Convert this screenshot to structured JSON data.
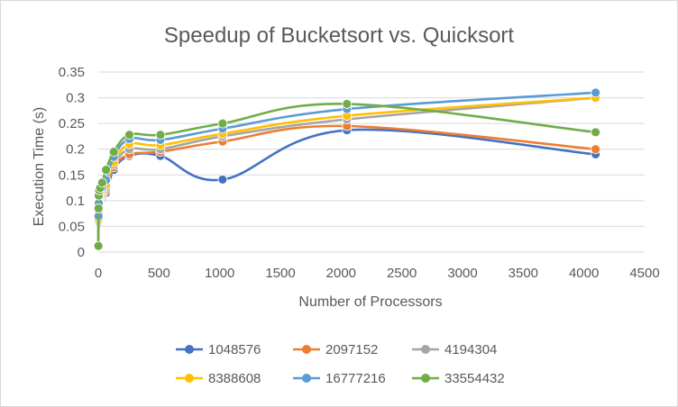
{
  "chart_data": {
    "type": "scatter",
    "title": "Speedup of Bucketsort vs. Quicksort",
    "xlabel": "Number of Processors",
    "ylabel": "Execution Time (s)",
    "xlim": [
      0,
      4500
    ],
    "ylim": [
      0,
      0.35
    ],
    "x_ticks": [
      0,
      500,
      1000,
      1500,
      2000,
      2500,
      3000,
      3500,
      4000,
      4500
    ],
    "y_ticks": [
      0,
      0.05,
      0.1,
      0.15,
      0.2,
      0.25,
      0.3,
      0.35
    ],
    "x_tick_labels": [
      "0",
      "500",
      "1000",
      "1500",
      "2000",
      "2500",
      "3000",
      "3500",
      "4000",
      "4500"
    ],
    "y_tick_labels": [
      "0",
      "0.05",
      "0.1",
      "0.15",
      "0.2",
      "0.25",
      "0.3",
      "0.35"
    ],
    "grid": true,
    "legend_position": "bottom",
    "smoothed_lines": true,
    "series": [
      {
        "name": "1048576",
        "color": "#4472C4",
        "points": [
          [
            1,
            0.012
          ],
          [
            2,
            0.058
          ],
          [
            4,
            0.075
          ],
          [
            8,
            0.09
          ],
          [
            16,
            0.098
          ],
          [
            32,
            0.104
          ],
          [
            64,
            0.115
          ],
          [
            128,
            0.16
          ],
          [
            256,
            0.187
          ],
          [
            512,
            0.187
          ],
          [
            1024,
            0.141
          ],
          [
            2048,
            0.237
          ],
          [
            4096,
            0.19
          ]
        ]
      },
      {
        "name": "2097152",
        "color": "#ED7D31",
        "points": [
          [
            1,
            0.012
          ],
          [
            2,
            0.06
          ],
          [
            4,
            0.08
          ],
          [
            8,
            0.095
          ],
          [
            16,
            0.1
          ],
          [
            32,
            0.108
          ],
          [
            64,
            0.12
          ],
          [
            128,
            0.165
          ],
          [
            256,
            0.19
          ],
          [
            512,
            0.195
          ],
          [
            1024,
            0.215
          ],
          [
            2048,
            0.245
          ],
          [
            4096,
            0.2
          ]
        ]
      },
      {
        "name": "4194304",
        "color": "#A5A5A5",
        "points": [
          [
            1,
            0.012
          ],
          [
            2,
            0.062
          ],
          [
            4,
            0.085
          ],
          [
            8,
            0.1
          ],
          [
            16,
            0.105
          ],
          [
            32,
            0.112
          ],
          [
            64,
            0.125
          ],
          [
            128,
            0.17
          ],
          [
            256,
            0.2
          ],
          [
            512,
            0.2
          ],
          [
            1024,
            0.225
          ],
          [
            2048,
            0.258
          ],
          [
            4096,
            0.3
          ]
        ]
      },
      {
        "name": "8388608",
        "color": "#FFC000",
        "points": [
          [
            1,
            0.012
          ],
          [
            2,
            0.065
          ],
          [
            4,
            0.09
          ],
          [
            8,
            0.105
          ],
          [
            16,
            0.11
          ],
          [
            32,
            0.118
          ],
          [
            64,
            0.13
          ],
          [
            128,
            0.175
          ],
          [
            256,
            0.21
          ],
          [
            512,
            0.208
          ],
          [
            1024,
            0.23
          ],
          [
            2048,
            0.265
          ],
          [
            4096,
            0.3
          ]
        ]
      },
      {
        "name": "16777216",
        "color": "#5B9BD5",
        "points": [
          [
            1,
            0.012
          ],
          [
            2,
            0.07
          ],
          [
            4,
            0.095
          ],
          [
            8,
            0.112
          ],
          [
            16,
            0.118
          ],
          [
            32,
            0.125
          ],
          [
            64,
            0.14
          ],
          [
            128,
            0.185
          ],
          [
            256,
            0.22
          ],
          [
            512,
            0.218
          ],
          [
            1024,
            0.24
          ],
          [
            2048,
            0.278
          ],
          [
            4096,
            0.31
          ]
        ]
      },
      {
        "name": "33554432",
        "color": "#70AD47",
        "points": [
          [
            1,
            0.012
          ],
          [
            2,
            0.085
          ],
          [
            4,
            0.11
          ],
          [
            8,
            0.12
          ],
          [
            16,
            0.125
          ],
          [
            32,
            0.135
          ],
          [
            64,
            0.16
          ],
          [
            128,
            0.195
          ],
          [
            256,
            0.228
          ],
          [
            512,
            0.228
          ],
          [
            1024,
            0.25
          ],
          [
            2048,
            0.288
          ],
          [
            4096,
            0.233
          ]
        ]
      }
    ]
  }
}
